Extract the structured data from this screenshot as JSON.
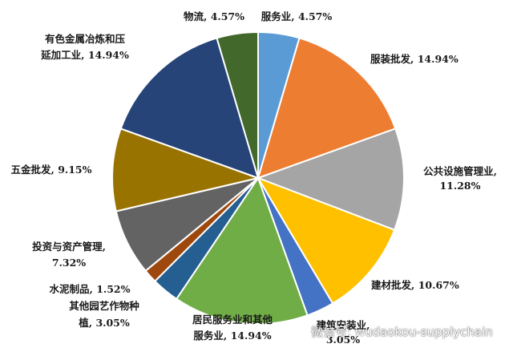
{
  "chart_data": {
    "type": "pie",
    "title": "",
    "slices": [
      {
        "label": "服务业, 4.57%",
        "value": 4.57,
        "color": "#5b9bd5"
      },
      {
        "label": "服装批发, 14.94%",
        "value": 14.94,
        "color": "#ed7d31"
      },
      {
        "label": "公共设施管理业, 11.28%",
        "value": 11.28,
        "color": "#a5a5a5"
      },
      {
        "label": "建材批发, 10.67%",
        "value": 10.67,
        "color": "#ffc000"
      },
      {
        "label": "建筑安装业, 3.05%",
        "value": 3.05,
        "color": "#4472c4"
      },
      {
        "label": "居民服务业和其他服务业, 14.94%",
        "value": 14.94,
        "color": "#70ad47"
      },
      {
        "label": "其他园艺作物种植, 3.05%",
        "value": 3.05,
        "color": "#255e91"
      },
      {
        "label": "水泥制品, 1.52%",
        "value": 1.52,
        "color": "#9e480e"
      },
      {
        "label": "投资与资产管理, 7.32%",
        "value": 7.32,
        "color": "#636363"
      },
      {
        "label": "五金批发, 9.15%",
        "value": 9.15,
        "color": "#997300"
      },
      {
        "label": "有色金属冶炼和压延加工业, 14.94%",
        "value": 14.94,
        "color": "#264478"
      },
      {
        "label": "物流, 4.57%",
        "value": 4.57,
        "color": "#43682b"
      }
    ],
    "labels": [
      {
        "lines": [
          "物流, 4.57%"
        ]
      },
      {
        "lines": [
          "服务业, 4.57%"
        ]
      },
      {
        "lines": [
          "服装批发, 14.94%"
        ]
      },
      {
        "lines": [
          "公共设施管理业,",
          "11.28%"
        ]
      },
      {
        "lines": [
          "建材批发, 10.67%"
        ]
      },
      {
        "lines": [
          "建筑安装业,",
          "3.05%"
        ]
      },
      {
        "lines": [
          "居民服务业和其他",
          "服务业, 14.94%"
        ]
      },
      {
        "lines": [
          "其他园艺作物种",
          "植, 3.05%"
        ]
      },
      {
        "lines": [
          "水泥制品, 1.52%"
        ]
      },
      {
        "lines": [
          "投资与资产管理,",
          "7.32%"
        ]
      },
      {
        "lines": [
          "五金批发, 9.15%"
        ]
      },
      {
        "lines": [
          "有色金属冶炼和压",
          "延加工业, 14.94%"
        ]
      }
    ]
  },
  "watermark": {
    "text": "微信号: wudaokou-supplychain",
    "icon": "wechat-icon"
  }
}
